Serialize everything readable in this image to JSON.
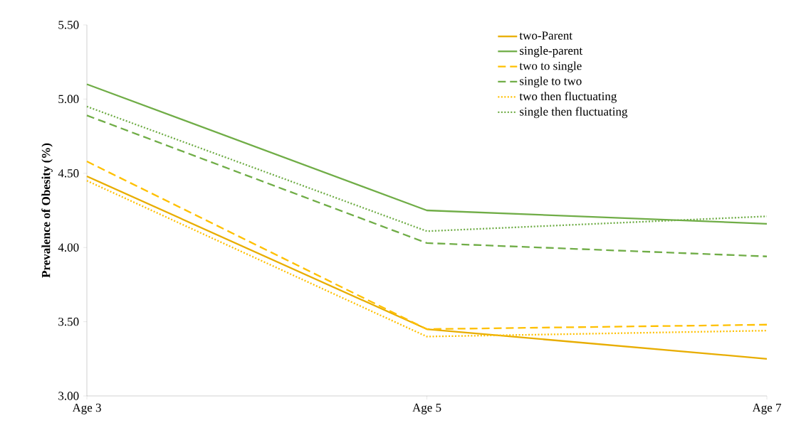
{
  "chart_data": {
    "type": "line",
    "ylabel": "Prevalence of Obesity (%)",
    "categories": [
      "Age 3",
      "Age 5",
      "Age 7"
    ],
    "ylim": [
      3.0,
      5.5
    ],
    "yticks": [
      {
        "value": 3.0,
        "label": "3.00"
      },
      {
        "value": 3.5,
        "label": "3.50"
      },
      {
        "value": 4.0,
        "label": "4.00"
      },
      {
        "value": 4.5,
        "label": "4.50"
      },
      {
        "value": 5.0,
        "label": "5.00"
      },
      {
        "value": 5.5,
        "label": "5.50"
      }
    ],
    "legend": "top right",
    "series": [
      {
        "name": "two-Parent",
        "color": "#e8ad00",
        "line_style": "solid",
        "values": [
          4.48,
          3.45,
          3.25
        ]
      },
      {
        "name": "single-parent",
        "color": "#70ad47",
        "line_style": "solid",
        "values": [
          5.1,
          4.25,
          4.16
        ]
      },
      {
        "name": "two to single",
        "color": "#ffc000",
        "line_style": "dashed",
        "values": [
          4.58,
          3.45,
          3.48
        ]
      },
      {
        "name": "single to two",
        "color": "#70ad47",
        "line_style": "dashed",
        "values": [
          4.89,
          4.03,
          3.94
        ]
      },
      {
        "name": "two then fluctuating",
        "color": "#ffc000",
        "line_style": "dotted",
        "values": [
          4.45,
          3.4,
          3.44
        ]
      },
      {
        "name": "single then fluctuating",
        "color": "#70ad47",
        "line_style": "dotted",
        "values": [
          4.95,
          4.11,
          4.21
        ]
      }
    ]
  }
}
